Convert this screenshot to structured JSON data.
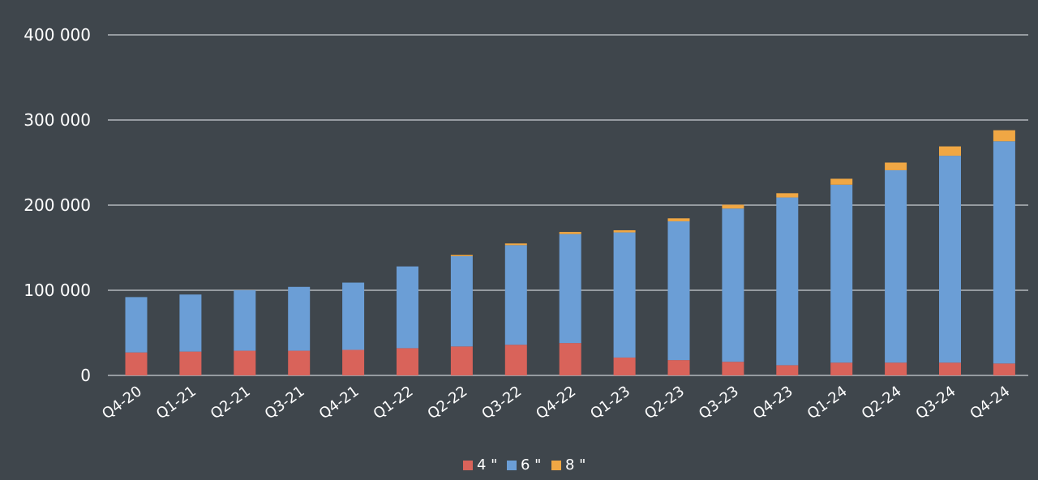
{
  "chart_data": {
    "type": "bar",
    "stacked": true,
    "title": "",
    "xlabel": "",
    "ylabel": "",
    "ylim": [
      0,
      400000
    ],
    "yticks": [
      0,
      100000,
      200000,
      300000,
      400000
    ],
    "ytick_labels": [
      "0",
      "100 000",
      "200 000",
      "300 000",
      "400 000"
    ],
    "grid": true,
    "legend_position": "bottom-center",
    "categories": [
      "Q4-20",
      "Q1-21",
      "Q2-21",
      "Q3-21",
      "Q4-21",
      "Q1-22",
      "Q2-22",
      "Q3-22",
      "Q4-22",
      "Q1-23",
      "Q2-23",
      "Q3-23",
      "Q4-23",
      "Q1-24",
      "Q2-24",
      "Q3-24",
      "Q4-24"
    ],
    "series": [
      {
        "name": "4 \"",
        "color": "#d9635a",
        "values": [
          27000,
          28000,
          29000,
          29000,
          30000,
          32000,
          34000,
          36000,
          38000,
          21000,
          18000,
          16000,
          12000,
          15000,
          15000,
          15000,
          14000
        ]
      },
      {
        "name": "6 \"",
        "color": "#6b9ed6",
        "values": [
          65000,
          67000,
          71000,
          75000,
          79000,
          96000,
          106000,
          117000,
          128000,
          147000,
          163000,
          180000,
          197000,
          209000,
          226000,
          243000,
          261000
        ]
      },
      {
        "name": "8 \"",
        "color": "#f0a744",
        "values": [
          0,
          0,
          0,
          0,
          0,
          0,
          1500,
          2000,
          2500,
          2500,
          3500,
          4500,
          5000,
          7000,
          9000,
          11000,
          13000
        ]
      }
    ]
  }
}
